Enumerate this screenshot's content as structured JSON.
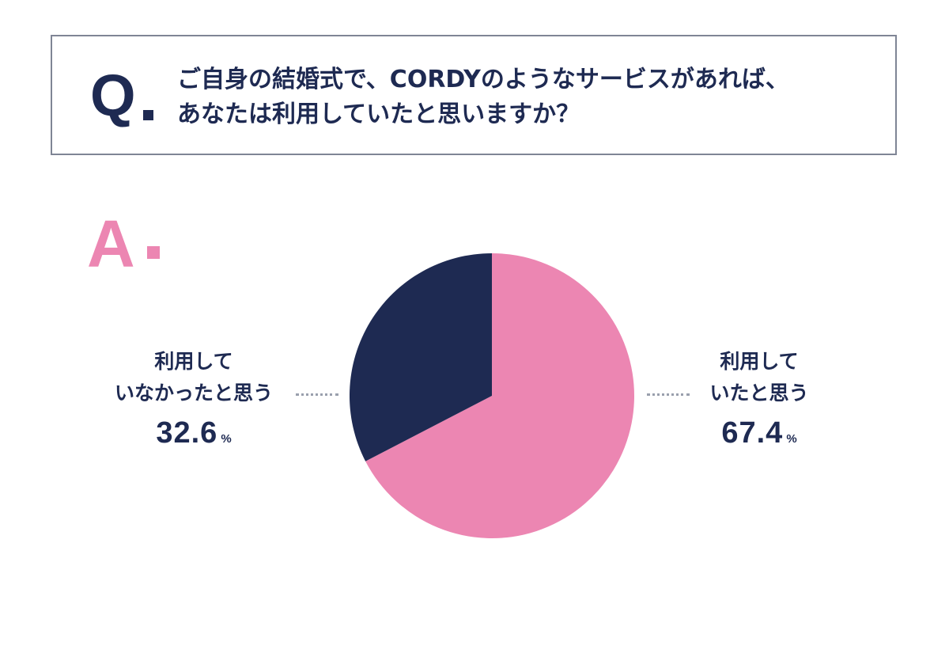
{
  "question": {
    "mark": "Q",
    "line1": "ご自身の結婚式で、CORDYのようなサービスがあれば、",
    "line2": "あなたは利用していたと思いますか？"
  },
  "answer": {
    "mark": "A"
  },
  "colors": {
    "navy": "#1e2a52",
    "pink": "#ec86b2",
    "border": "#7f8595",
    "leader": "#9aa0ad"
  },
  "chart_data": {
    "type": "pie",
    "categories": [
      "利用していたと思う",
      "利用していなかったと思う"
    ],
    "values": [
      67.4,
      32.6
    ],
    "unit": "%",
    "start_angle_deg": 0,
    "direction": "clockwise",
    "slices": [
      {
        "label_line1": "利用して",
        "label_line2": "いたと思う",
        "value": 67.4,
        "value_text": "67.4",
        "unit": "%",
        "color": "#ec86b2",
        "label_side": "right"
      },
      {
        "label_line1": "利用して",
        "label_line2": "いなかったと思う",
        "value": 32.6,
        "value_text": "32.6",
        "unit": "%",
        "color": "#1e2a52",
        "label_side": "left"
      }
    ]
  }
}
